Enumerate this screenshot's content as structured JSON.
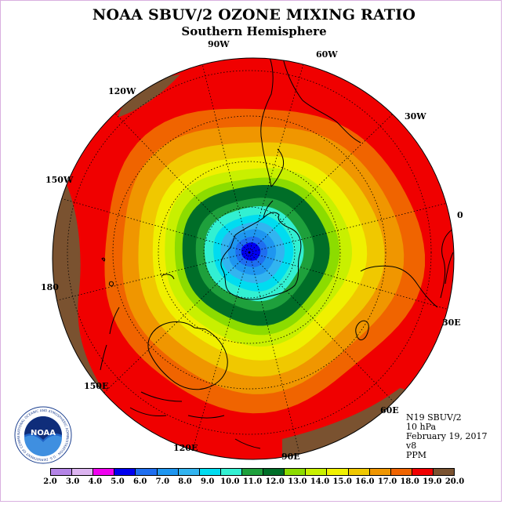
{
  "title": "NOAA SBUV/2 OZONE MIXING RATIO",
  "subtitle": "Southern Hemisphere",
  "longitude_labels": [
    "90W",
    "60W",
    "30W",
    "0",
    "30E",
    "60E",
    "90E",
    "120E",
    "150E",
    "180",
    "150W",
    "120W"
  ],
  "info": {
    "satellite": "N19 SBUV/2",
    "level": "10 hPa",
    "date": "February 19, 2017",
    "version": "v8",
    "units": "PPM"
  },
  "logo": {
    "text": "NOAA",
    "icon": "noaa-logo-icon",
    "ring_text": "NATIONAL OCEANIC AND ATMOSPHERIC ADMINISTRATION · U.S. DEPARTMENT OF COMMERCE"
  },
  "legend": {
    "ticks": [
      "2.0",
      "3.0",
      "4.0",
      "5.0",
      "6.0",
      "7.0",
      "8.0",
      "9.0",
      "10.0",
      "11.0",
      "12.0",
      "13.0",
      "14.0",
      "15.0",
      "16.0",
      "17.0",
      "18.0",
      "19.0",
      "20.0"
    ],
    "colors": [
      "#b484e6",
      "#dcb4f0",
      "#f000f0",
      "#0000f0",
      "#1e6ef0",
      "#1e96f0",
      "#32b4f0",
      "#00dcf0",
      "#32f0d2",
      "#1ea03c",
      "#006e28",
      "#8cdc00",
      "#c8f000",
      "#f0f000",
      "#f0c800",
      "#f09600",
      "#f06400",
      "#f00000",
      "#7a5230"
    ]
  },
  "map_data": {
    "projection": "south-polar-stereographic",
    "field": "ozone mixing ratio",
    "center_minimum": 5.5,
    "rim_value": 19.0,
    "outer_patch_value": 20.0
  }
}
